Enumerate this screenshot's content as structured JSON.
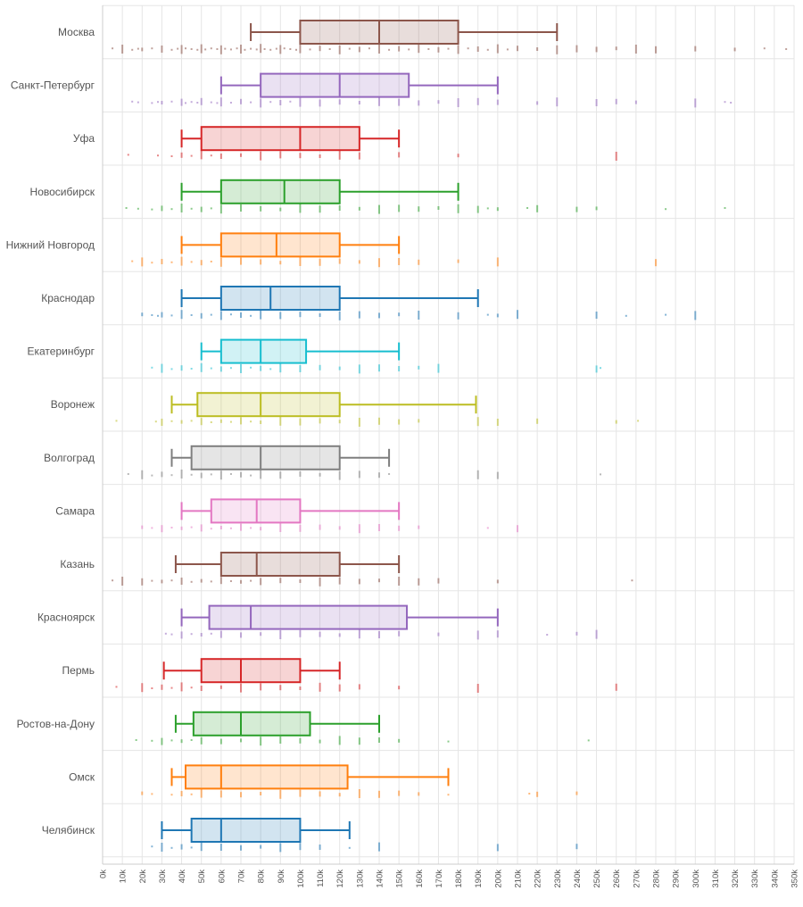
{
  "chart_data": {
    "type": "boxplot",
    "orientation": "horizontal",
    "grid": true,
    "xlim": [
      0,
      350000
    ],
    "x_tick_step": 10000,
    "x_tick_labels": [
      "0k",
      "10k",
      "20k",
      "30k",
      "40k",
      "50k",
      "60k",
      "70k",
      "80k",
      "90k",
      "100k",
      "110k",
      "120k",
      "130k",
      "140k",
      "150k",
      "160k",
      "170k",
      "180k",
      "190k",
      "200k",
      "210k",
      "220k",
      "230k",
      "240k",
      "250k",
      "260k",
      "270k",
      "280k",
      "290k",
      "300k",
      "310k",
      "320k",
      "330k",
      "340k",
      "350k"
    ],
    "categories": [
      "Москва",
      "Санкт-Петербург",
      "Уфа",
      "Новосибирск",
      "Нижний Новгород",
      "Краснодар",
      "Екатеринбург",
      "Воронеж",
      "Волгоград",
      "Самара",
      "Казань",
      "Красноярск",
      "Пермь",
      "Ростов-на-Дону",
      "Омск",
      "Челябинск"
    ],
    "colors": [
      "#8c564b",
      "#9467bd",
      "#d62728",
      "#2ca02c",
      "#ff7f0e",
      "#1f77b4",
      "#17becf",
      "#bcbd22",
      "#7f7f7f",
      "#e377c2",
      "#8c564b",
      "#9467bd",
      "#d62728",
      "#2ca02c",
      "#ff7f0e",
      "#1f77b4"
    ],
    "boxes": [
      {
        "whisker_low": 75000,
        "q1": 100000,
        "median": 140000,
        "q3": 180000,
        "whisker_high": 230000,
        "points": [
          5000,
          10000,
          15000,
          18000,
          20000,
          25000,
          30000,
          35000,
          38000,
          40000,
          42000,
          45000,
          48000,
          50000,
          52000,
          55000,
          58000,
          60000,
          62000,
          65000,
          68000,
          70000,
          72000,
          75000,
          78000,
          80000,
          82000,
          85000,
          88000,
          90000,
          92000,
          95000,
          98000,
          100000,
          105000,
          110000,
          115000,
          120000,
          125000,
          130000,
          135000,
          140000,
          145000,
          150000,
          155000,
          160000,
          165000,
          170000,
          175000,
          180000,
          185000,
          190000,
          195000,
          200000,
          205000,
          210000,
          220000,
          230000,
          240000,
          250000,
          260000,
          270000,
          280000,
          300000,
          320000,
          335000,
          346000
        ]
      },
      {
        "whisker_low": 60000,
        "q1": 80000,
        "median": 120000,
        "q3": 155000,
        "whisker_high": 200000,
        "points": [
          15000,
          18000,
          25000,
          28000,
          30000,
          35000,
          40000,
          42000,
          45000,
          48000,
          50000,
          55000,
          58000,
          60000,
          65000,
          70000,
          75000,
          80000,
          85000,
          90000,
          95000,
          100000,
          110000,
          120000,
          130000,
          140000,
          150000,
          160000,
          170000,
          180000,
          190000,
          200000,
          220000,
          230000,
          250000,
          260000,
          270000,
          300000,
          315000,
          318000
        ]
      },
      {
        "whisker_low": 40000,
        "q1": 50000,
        "median": 100000,
        "q3": 130000,
        "whisker_high": 150000,
        "points": [
          13000,
          28000,
          35000,
          40000,
          45000,
          50000,
          55000,
          60000,
          70000,
          80000,
          90000,
          100000,
          110000,
          120000,
          130000,
          150000,
          180000,
          260000
        ]
      },
      {
        "whisker_low": 40000,
        "q1": 60000,
        "median": 92000,
        "q3": 120000,
        "whisker_high": 180000,
        "points": [
          12000,
          18000,
          25000,
          30000,
          35000,
          40000,
          45000,
          50000,
          55000,
          60000,
          70000,
          80000,
          90000,
          100000,
          110000,
          120000,
          130000,
          140000,
          150000,
          160000,
          170000,
          180000,
          190000,
          195000,
          200000,
          215000,
          220000,
          240000,
          250000,
          285000,
          315000
        ]
      },
      {
        "whisker_low": 40000,
        "q1": 60000,
        "median": 88000,
        "q3": 120000,
        "whisker_high": 150000,
        "points": [
          15000,
          20000,
          25000,
          30000,
          35000,
          40000,
          45000,
          50000,
          55000,
          60000,
          70000,
          80000,
          90000,
          100000,
          110000,
          120000,
          130000,
          140000,
          150000,
          160000,
          180000,
          200000,
          280000
        ]
      },
      {
        "whisker_low": 40000,
        "q1": 60000,
        "median": 85000,
        "q3": 120000,
        "whisker_high": 190000,
        "points": [
          20000,
          25000,
          28000,
          30000,
          35000,
          40000,
          45000,
          50000,
          55000,
          60000,
          65000,
          70000,
          75000,
          80000,
          90000,
          100000,
          110000,
          120000,
          130000,
          140000,
          150000,
          160000,
          180000,
          195000,
          200000,
          210000,
          250000,
          265000,
          285000,
          300000
        ]
      },
      {
        "whisker_low": 50000,
        "q1": 60000,
        "median": 80000,
        "q3": 103000,
        "whisker_high": 150000,
        "points": [
          25000,
          30000,
          35000,
          40000,
          45000,
          50000,
          55000,
          60000,
          65000,
          70000,
          75000,
          80000,
          85000,
          90000,
          100000,
          110000,
          120000,
          130000,
          140000,
          150000,
          160000,
          170000,
          250000,
          252000
        ]
      },
      {
        "whisker_low": 35000,
        "q1": 48000,
        "median": 80000,
        "q3": 120000,
        "whisker_high": 189000,
        "points": [
          7000,
          27000,
          30000,
          35000,
          40000,
          45000,
          50000,
          55000,
          60000,
          65000,
          70000,
          75000,
          80000,
          90000,
          100000,
          110000,
          120000,
          130000,
          140000,
          150000,
          160000,
          190000,
          200000,
          220000,
          260000,
          271000
        ]
      },
      {
        "whisker_low": 35000,
        "q1": 45000,
        "median": 80000,
        "q3": 120000,
        "whisker_high": 145000,
        "points": [
          13000,
          20000,
          25000,
          30000,
          35000,
          40000,
          45000,
          50000,
          55000,
          60000,
          65000,
          70000,
          75000,
          80000,
          90000,
          100000,
          110000,
          120000,
          130000,
          140000,
          145000,
          190000,
          200000,
          252000
        ]
      },
      {
        "whisker_low": 40000,
        "q1": 55000,
        "median": 78000,
        "q3": 100000,
        "whisker_high": 150000,
        "points": [
          20000,
          25000,
          30000,
          35000,
          40000,
          45000,
          50000,
          55000,
          60000,
          65000,
          70000,
          75000,
          80000,
          90000,
          100000,
          110000,
          120000,
          130000,
          140000,
          150000,
          160000,
          195000,
          210000
        ]
      },
      {
        "whisker_low": 37000,
        "q1": 60000,
        "median": 78000,
        "q3": 120000,
        "whisker_high": 150000,
        "points": [
          5000,
          10000,
          20000,
          25000,
          30000,
          35000,
          40000,
          45000,
          50000,
          55000,
          60000,
          65000,
          70000,
          75000,
          80000,
          90000,
          100000,
          110000,
          120000,
          130000,
          140000,
          150000,
          160000,
          170000,
          200000,
          268000
        ]
      },
      {
        "whisker_low": 40000,
        "q1": 54000,
        "median": 75000,
        "q3": 154000,
        "whisker_high": 200000,
        "points": [
          32000,
          35000,
          40000,
          45000,
          50000,
          55000,
          60000,
          70000,
          80000,
          90000,
          100000,
          110000,
          120000,
          130000,
          140000,
          150000,
          170000,
          190000,
          200000,
          225000,
          240000,
          250000
        ]
      },
      {
        "whisker_low": 31000,
        "q1": 50000,
        "median": 70000,
        "q3": 100000,
        "whisker_high": 120000,
        "points": [
          7000,
          20000,
          25000,
          30000,
          35000,
          40000,
          45000,
          50000,
          60000,
          70000,
          80000,
          90000,
          100000,
          110000,
          120000,
          130000,
          150000,
          190000,
          260000
        ]
      },
      {
        "whisker_low": 37000,
        "q1": 46000,
        "median": 70000,
        "q3": 105000,
        "whisker_high": 140000,
        "points": [
          17000,
          25000,
          30000,
          35000,
          40000,
          45000,
          50000,
          60000,
          70000,
          80000,
          90000,
          100000,
          110000,
          120000,
          130000,
          140000,
          150000,
          175000,
          246000
        ]
      },
      {
        "whisker_low": 35000,
        "q1": 42000,
        "median": 60000,
        "q3": 124000,
        "whisker_high": 175000,
        "points": [
          20000,
          25000,
          35000,
          40000,
          45000,
          50000,
          60000,
          70000,
          80000,
          90000,
          100000,
          110000,
          120000,
          130000,
          140000,
          150000,
          160000,
          175000,
          216000,
          220000,
          240000
        ]
      },
      {
        "whisker_low": 30000,
        "q1": 45000,
        "median": 60000,
        "q3": 100000,
        "whisker_high": 125000,
        "points": [
          25000,
          30000,
          35000,
          40000,
          45000,
          50000,
          60000,
          70000,
          80000,
          90000,
          100000,
          110000,
          125000,
          140000,
          200000,
          240000
        ]
      }
    ]
  }
}
